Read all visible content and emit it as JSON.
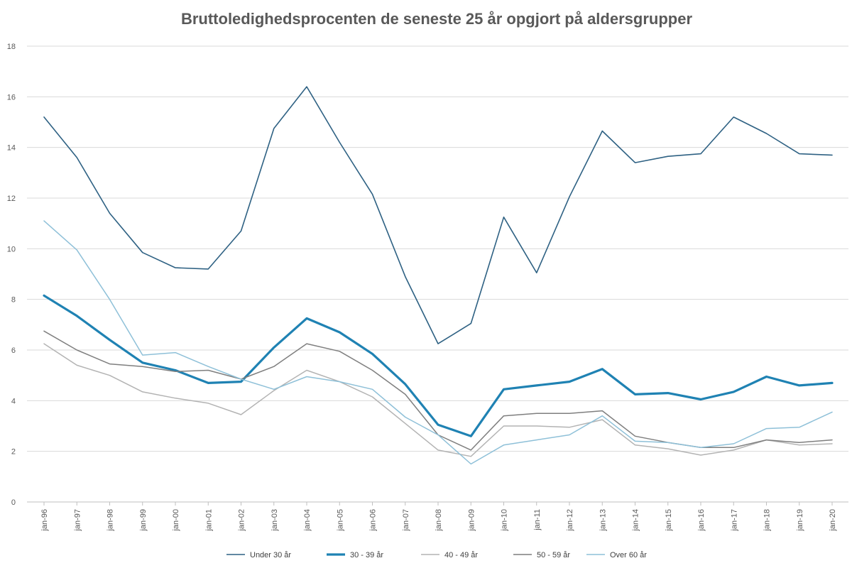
{
  "chart_data": {
    "type": "line",
    "title": "Bruttoledighedsprocenten de seneste 25 år opgjort på aldersgrupper",
    "xlabel": "",
    "ylabel": "",
    "ylim": [
      0,
      18
    ],
    "yticks": [
      0,
      2,
      4,
      6,
      8,
      10,
      12,
      14,
      16,
      18
    ],
    "grid": "horizontal",
    "legend_position": "bottom",
    "categories": [
      "jan-96",
      "jan-97",
      "jan-98",
      "jan-99",
      "jan-00",
      "jan-01",
      "jan-02",
      "jan-03",
      "jan-04",
      "jan-05",
      "jan-06",
      "jan-07",
      "jan-08",
      "jan-09",
      "jan-10",
      "jan-11",
      "jan-12",
      "jan-13",
      "jan-14",
      "jan-15",
      "jan-16",
      "jan-17",
      "jan-18",
      "jan-19",
      "jan-20"
    ],
    "series": [
      {
        "name": "Under 30 år",
        "color": "#2e6183",
        "width": 1.6,
        "values": [
          15.2,
          13.6,
          11.4,
          9.85,
          9.25,
          9.2,
          10.7,
          14.75,
          16.4,
          14.2,
          12.15,
          8.9,
          6.25,
          7.05,
          11.25,
          9.05,
          12.05,
          14.65,
          13.4,
          13.65,
          13.75,
          15.2,
          14.55,
          13.75,
          13.7
        ]
      },
      {
        "name": "30 - 39 år",
        "color": "#1f82b3",
        "width": 3.2,
        "values": [
          8.15,
          7.35,
          6.4,
          5.5,
          5.2,
          4.7,
          4.75,
          6.1,
          7.25,
          6.7,
          5.85,
          4.65,
          3.05,
          2.6,
          4.45,
          4.6,
          4.75,
          5.25,
          4.25,
          4.3,
          4.05,
          4.35,
          4.95,
          4.6,
          4.7
        ]
      },
      {
        "name": "40 - 49 år",
        "color": "#b3b3b3",
        "width": 1.5,
        "values": [
          6.25,
          5.4,
          5.0,
          4.35,
          4.1,
          3.9,
          3.45,
          4.4,
          5.2,
          4.75,
          4.15,
          3.1,
          2.05,
          1.8,
          3.0,
          3.0,
          2.95,
          3.25,
          2.25,
          2.1,
          1.85,
          2.05,
          2.45,
          2.25,
          2.3
        ]
      },
      {
        "name": "50 - 59 år",
        "color": "#7f7f7f",
        "width": 1.5,
        "values": [
          6.75,
          6.0,
          5.45,
          5.35,
          5.15,
          5.2,
          4.85,
          5.35,
          6.25,
          5.95,
          5.2,
          4.25,
          2.65,
          2.05,
          3.4,
          3.5,
          3.5,
          3.6,
          2.6,
          2.35,
          2.15,
          2.15,
          2.45,
          2.35,
          2.45
        ]
      },
      {
        "name": "Over 60 år",
        "color": "#8ec0d8",
        "width": 1.5,
        "values": [
          11.1,
          9.95,
          8.0,
          5.8,
          5.9,
          5.35,
          4.85,
          4.45,
          4.95,
          4.75,
          4.45,
          3.35,
          2.65,
          1.5,
          2.25,
          2.45,
          2.65,
          3.4,
          2.4,
          2.35,
          2.15,
          2.3,
          2.9,
          2.95,
          3.55
        ]
      }
    ]
  }
}
